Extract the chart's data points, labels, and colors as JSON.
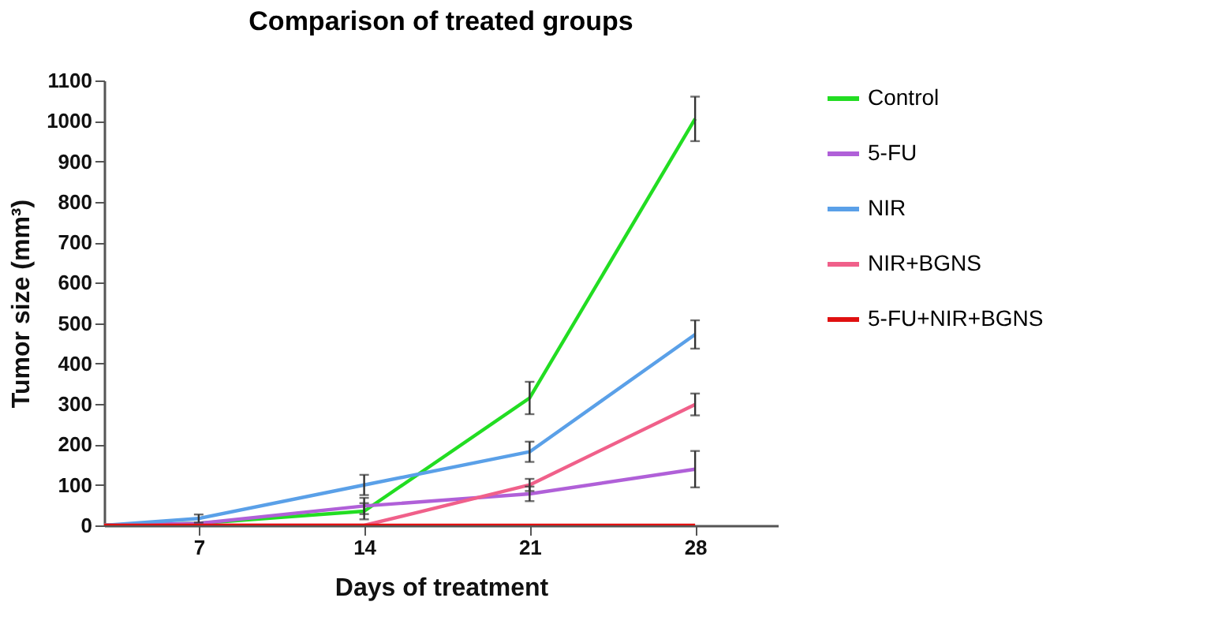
{
  "chart_data": {
    "type": "line",
    "title": "Comparison of treated groups",
    "xlabel": "Days of treatment",
    "ylabel": "Tumor size (mm³)",
    "x": [
      3,
      7,
      14,
      21,
      28
    ],
    "xlim": [
      3,
      31.5
    ],
    "xticks": [
      7,
      14,
      21,
      28
    ],
    "ylim": [
      0,
      1100
    ],
    "yticks": [
      0,
      100,
      200,
      300,
      400,
      500,
      600,
      700,
      800,
      900,
      1000,
      1100
    ],
    "grid": false,
    "legend": "right",
    "series": [
      {
        "name": "Control",
        "color": "#22dd22",
        "values": [
          0,
          5,
          35,
          315,
          1005
        ],
        "errors": [
          null,
          null,
          20,
          40,
          55
        ]
      },
      {
        "name": "5-FU",
        "color": "#b060d8",
        "values": [
          0,
          5,
          48,
          78,
          139
        ],
        "errors": [
          null,
          null,
          20,
          18,
          45
        ]
      },
      {
        "name": "NIR",
        "color": "#5aa0e8",
        "values": [
          0,
          17,
          100,
          182,
          472
        ],
        "errors": [
          null,
          10,
          25,
          25,
          35
        ]
      },
      {
        "name": "NIR+BGNS",
        "color": "#f0608a",
        "values": [
          0,
          0,
          0,
          100,
          299
        ],
        "errors": [
          null,
          null,
          null,
          15,
          27
        ]
      },
      {
        "name": "5-FU+NIR+BGNS",
        "color": "#e01010",
        "values": [
          0,
          0,
          0,
          0,
          0
        ],
        "errors": [
          null,
          null,
          null,
          null,
          null
        ]
      }
    ]
  }
}
